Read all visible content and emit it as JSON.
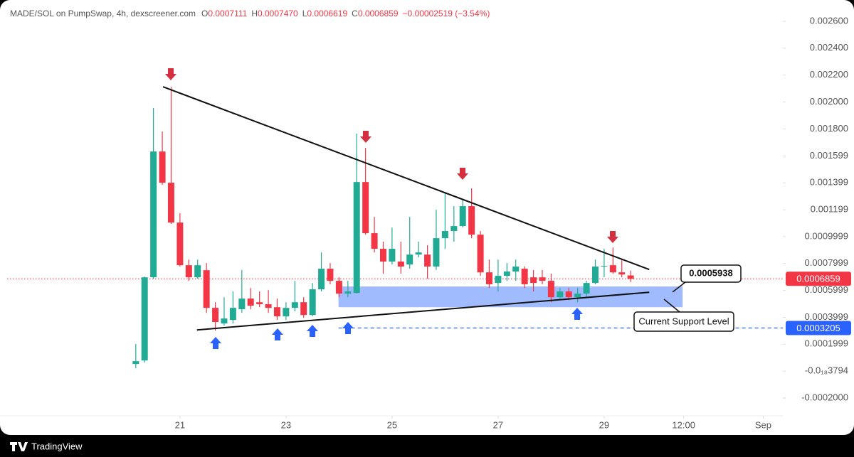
{
  "chart_data": {
    "type": "candlestick",
    "title": "MADE/SOL on PumpSwap, 4h, dexscreener.com",
    "ohlc_legend": [
      {
        "label": "O",
        "value": "0.0007111"
      },
      {
        "label": "H",
        "value": "0.0007470"
      },
      {
        "label": "L",
        "value": "0.0006619"
      },
      {
        "label": "C",
        "value": "0.0006859"
      }
    ],
    "change": "−0.00002519 (−3.54%)",
    "up_color": "#22ab94",
    "down_color": "#f23645",
    "x": [
      20.167,
      20.333,
      20.5,
      20.667,
      20.833,
      21,
      21.167,
      21.333,
      21.5,
      21.667,
      21.833,
      22,
      22.167,
      22.333,
      22.5,
      22.667,
      22.833,
      23,
      23.167,
      23.333,
      23.5,
      23.667,
      23.833,
      24,
      24.167,
      24.333,
      24.5,
      24.667,
      24.833,
      25,
      25.167,
      25.333,
      25.5,
      25.667,
      25.833,
      26,
      26.167,
      26.333,
      26.5,
      26.667,
      26.833,
      27,
      27.167,
      27.333,
      27.5,
      27.667,
      27.833,
      28,
      28.167,
      28.333,
      28.5,
      28.667,
      28.833,
      29,
      29.167,
      29.333,
      29.5
    ],
    "open": [
      5.28e-05,
      7.92e-05,
      0.000697,
      0.001632,
      0.0014,
      0.001104,
      0.000787,
      0.000697,
      0.00075,
      0.00047,
      0.000354,
      0.00038,
      0.00046,
      0.000539,
      0.000512,
      0.000497,
      0.000475,
      0.000407,
      0.00047,
      0.000512,
      0.000417,
      0.000608,
      0.000761,
      0.000671,
      0.000576,
      0.000581,
      0.001405,
      0.001025,
      0.000909,
      0.000814,
      0.000814,
      0.000792,
      0.000866,
      0.000866,
      0.000777,
      0.000988,
      0.001041,
      0.001078,
      0.001226,
      0.001014,
      0.000734,
      0.000655,
      0.000708,
      0.00074,
      0.000761,
      0.000697,
      0.000697,
      0.000671,
      0.000549,
      0.000592,
      0.000549,
      0.000576,
      0.000655,
      0.000777,
      0.000787,
      0.000734,
      0.0007111
    ],
    "high": [
      0.000201,
      0.000702,
      0.001955,
      0.00178,
      0.002113,
      0.001173,
      0.000829,
      0.000829,
      0.000803,
      0.000512,
      0.000549,
      0.000592,
      0.000752,
      0.000618,
      0.000592,
      0.000602,
      0.000539,
      0.000512,
      0.000671,
      0.000549,
      0.000655,
      0.000882,
      0.000803,
      0.000697,
      0.000671,
      0.001765,
      0.001659,
      0.001146,
      0.000962,
      0.001067,
      0.000962,
      0.001146,
      0.000962,
      0.000935,
      0.001199,
      0.001331,
      0.001226,
      0.001278,
      0.001358,
      0.001041,
      0.000829,
      0.000829,
      0.000803,
      0.000829,
      0.000777,
      0.000752,
      0.000752,
      0.000724,
      0.000618,
      0.000618,
      0.000618,
      0.000671,
      0.000829,
      0.000909,
      0.000919,
      0.000829,
      0.000747
    ],
    "low": [
      2.11e-05,
      6.34e-05,
      0.000687,
      0.001384,
      0.001094,
      0.000777,
      0.000671,
      0.000687,
      0.000433,
      0.000301,
      0.000338,
      0.000354,
      0.000433,
      0.00046,
      0.000475,
      0.000433,
      0.00038,
      0.00038,
      0.000444,
      0.000396,
      0.000407,
      0.000592,
      0.000645,
      0.000549,
      0.000549,
      0.000576,
      0.001014,
      0.000882,
      0.000724,
      0.000792,
      0.000724,
      0.000761,
      0.000845,
      0.000687,
      0.000752,
      0.000909,
      0.000962,
      0.001067,
      0.000988,
      0.000708,
      0.000618,
      0.000592,
      0.000671,
      0.000671,
      0.000618,
      0.000592,
      0.000645,
      0.000512,
      0.000539,
      0.000528,
      0.000512,
      0.000549,
      0.000645,
      0.000697,
      0.000724,
      0.000697,
      0.0006619
    ],
    "close": [
      7.4e-05,
      0.000697,
      0.001632,
      0.0014,
      0.001104,
      0.000787,
      0.000697,
      0.000787,
      0.00047,
      0.000365,
      0.000391,
      0.00047,
      0.000539,
      0.000486,
      0.000497,
      0.00047,
      0.000407,
      0.00047,
      0.000512,
      0.000417,
      0.000608,
      0.000761,
      0.000671,
      0.000576,
      0.000592,
      0.001405,
      0.001025,
      0.000909,
      0.000814,
      0.000909,
      0.000777,
      0.000866,
      0.000882,
      0.000777,
      0.000988,
      0.001041,
      0.001078,
      0.001226,
      0.001014,
      0.000734,
      0.000645,
      0.000708,
      0.00074,
      0.000777,
      0.000645,
      0.000655,
      0.000671,
      0.000549,
      0.000592,
      0.000549,
      0.000576,
      0.000655,
      0.000777,
      0.000782,
      0.000734,
      0.000718,
      0.0006859
    ],
    "xlim": [
      17.74,
      32.37
    ],
    "xticks": [
      21,
      23,
      25,
      27,
      29,
      {
        "value": 30.5,
        "label": "12:00"
      },
      {
        "value": 32,
        "label": "Sep"
      }
    ],
    "ylim": [
      -0.000332,
      0.002758
    ],
    "yticks": [
      {
        "value": 0.0026,
        "label": "0.002600"
      },
      {
        "value": 0.0024,
        "label": "0.002400"
      },
      {
        "value": 0.0022,
        "label": "0.002200"
      },
      {
        "value": 0.002,
        "label": "0.002000"
      },
      {
        "value": 0.0018,
        "label": "0.001800"
      },
      0.001599,
      0.001399,
      0.001199,
      0.0009999,
      0.0007999,
      0.0005999,
      0.0003999,
      0.0001999,
      {
        "value": -3.794e-22,
        "label": "-0.0₁₈3794"
      },
      {
        "value": -0.0002,
        "label": "-0.0002000"
      }
    ],
    "price_lines": [
      {
        "value": 0.0006859,
        "color": "#f23645",
        "style": "dotted"
      },
      {
        "value": 0.0003205,
        "color": "#2962ff",
        "style": "dashed"
      }
    ],
    "support_zone": {
      "x": [
        23.99,
        30.48
      ],
      "y": [
        0.000475,
        0.000629
      ],
      "color": "#8fb0ff"
    },
    "trendlines": [
      {
        "x": [
          20.68,
          29.85
        ],
        "y": [
          0.002113,
          0.000755
        ]
      },
      {
        "x": [
          21.32,
          29.85
        ],
        "y": [
          0.000306,
          0.000586
        ]
      }
    ],
    "callouts": [
      "0.0005938",
      "Current Support Level"
    ],
    "source": "TradingView"
  }
}
